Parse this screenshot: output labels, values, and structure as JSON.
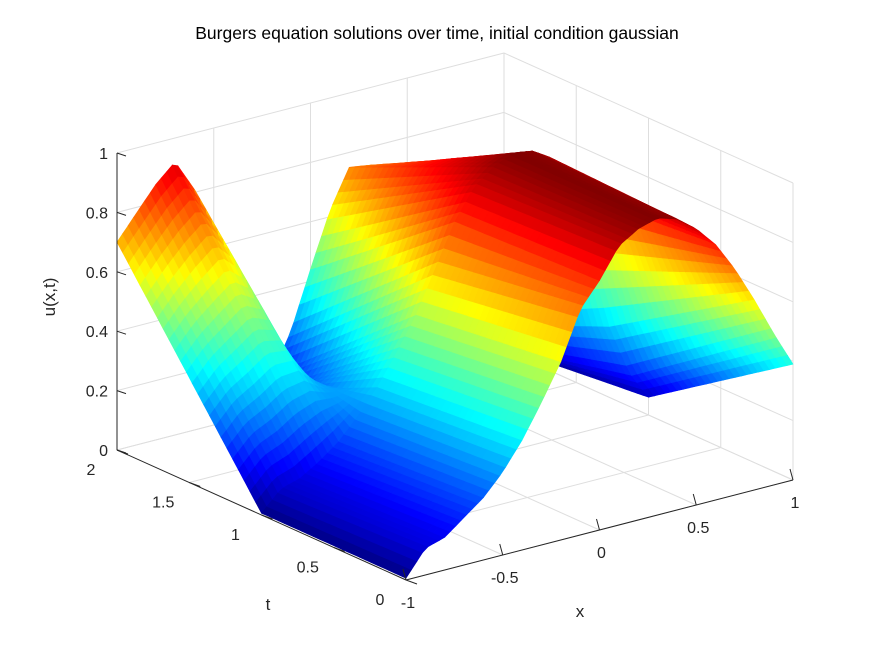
{
  "chart_data": {
    "type": "surface",
    "title": "Burgers equation solutions over time, initial condition gaussian",
    "xlabel": "x",
    "ylabel": "t",
    "zlabel": "u(x,t)",
    "xlim": [
      -1,
      1
    ],
    "ylim": [
      0,
      2
    ],
    "zlim": [
      0,
      1
    ],
    "x_ticks": [
      "-1",
      "-0.5",
      "0",
      "0.5",
      "1"
    ],
    "t_ticks": [
      "0",
      "0.5",
      "1",
      "1.5",
      "2"
    ],
    "z_ticks": [
      "0",
      "0.2",
      "0.4",
      "0.6",
      "0.8",
      "1"
    ],
    "grid": true,
    "colormap": "jet",
    "surface_u_grid": {
      "x": [
        -1,
        -0.9,
        -0.8,
        -0.7,
        -0.6,
        -0.5,
        -0.4,
        -0.3,
        -0.2,
        -0.1,
        0,
        0.1,
        0.2,
        0.3,
        0.4,
        0.5,
        0.6,
        0.7,
        0.8,
        0.9,
        1
      ],
      "t": [
        0,
        1,
        2
      ],
      "u": [
        [
          0.006,
          0.09,
          0.11,
          0.16,
          0.21,
          0.28,
          0.37,
          0.48,
          0.6,
          0.76,
          0.84,
          0.94,
          0.98,
          1.0,
          0.98,
          0.93,
          0.86,
          0.76,
          0.64,
          0.51,
          0.39
        ],
        [
          0.006,
          0.07,
          0.09,
          0.13,
          0.18,
          0.25,
          0.33,
          0.43,
          0.54,
          0.68,
          0.82,
          0.92,
          0.97,
          1.0,
          0.99,
          0.95,
          0.82,
          0.57,
          0.33,
          0.16,
          0.06
        ],
        [
          0.7,
          0.78,
          0.86,
          0.92,
          0.81,
          0.41,
          0.1,
          0.06,
          0.12,
          0.25,
          0.44,
          0.62,
          0.75,
          0.74,
          0.7,
          0.6,
          0.44,
          0.24,
          0.12,
          0.04,
          0.01
        ]
      ]
    }
  }
}
